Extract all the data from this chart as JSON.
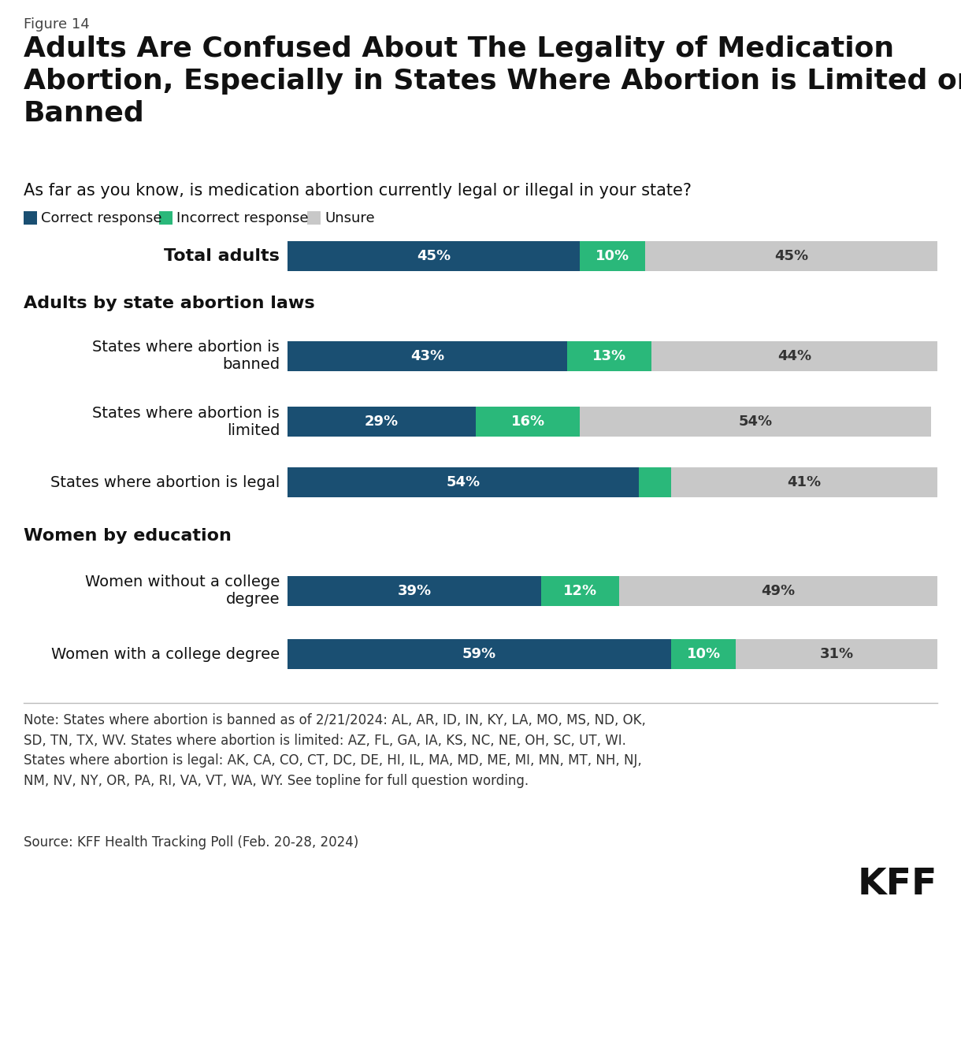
{
  "figure_label": "Figure 14",
  "title": "Adults Are Confused About The Legality of Medication\nAbortion, Especially in States Where Abortion is Limited or\nBanned",
  "question": "As far as you know, is medication abortion currently legal or illegal in your state?",
  "legend": [
    "Correct response",
    "Incorrect response",
    "Unsure"
  ],
  "legend_colors": [
    "#1a5276",
    "#2ecc8e",
    "#c8c8c8"
  ],
  "bars": [
    {
      "label_line1": "Total adults",
      "label_line2": "",
      "correct": 45,
      "incorrect": 10,
      "unsure": 45,
      "bold_label": true
    },
    {
      "label_line1": "States where abortion is",
      "label_line2": "banned",
      "correct": 43,
      "incorrect": 13,
      "unsure": 44,
      "bold_label": false
    },
    {
      "label_line1": "States where abortion is",
      "label_line2": "limited",
      "correct": 29,
      "incorrect": 16,
      "unsure": 54,
      "bold_label": false
    },
    {
      "label_line1": "States where abortion is legal",
      "label_line2": "",
      "correct": 54,
      "incorrect": 5,
      "unsure": 41,
      "bold_label": false
    },
    {
      "label_line1": "Women without a college",
      "label_line2": "degree",
      "correct": 39,
      "incorrect": 12,
      "unsure": 49,
      "bold_label": false
    },
    {
      "label_line1": "Women with a college degree",
      "label_line2": "",
      "correct": 59,
      "incorrect": 10,
      "unsure": 31,
      "bold_label": false
    }
  ],
  "correct_color": "#1a4f72",
  "incorrect_color": "#2ab87a",
  "unsure_color": "#c8c8c8",
  "note_text": "Note: States where abortion is banned as of 2/21/2024: AL, AR, ID, IN, KY, LA, MO, MS, ND, OK,\nSD, TN, TX, WV. States where abortion is limited: AZ, FL, GA, IA, KS, NC, NE, OH, SC, UT, WI.\nStates where abortion is legal: AK, CA, CO, CT, DC, DE, HI, IL, MA, MD, ME, MI, MN, MT, NH, NJ,\nNM, NV, NY, OR, PA, RI, VA, VT, WA, WY. See topline for full question wording.",
  "source_text": "Source: KFF Health Tracking Poll (Feb. 20-28, 2024)",
  "background_color": "#ffffff"
}
